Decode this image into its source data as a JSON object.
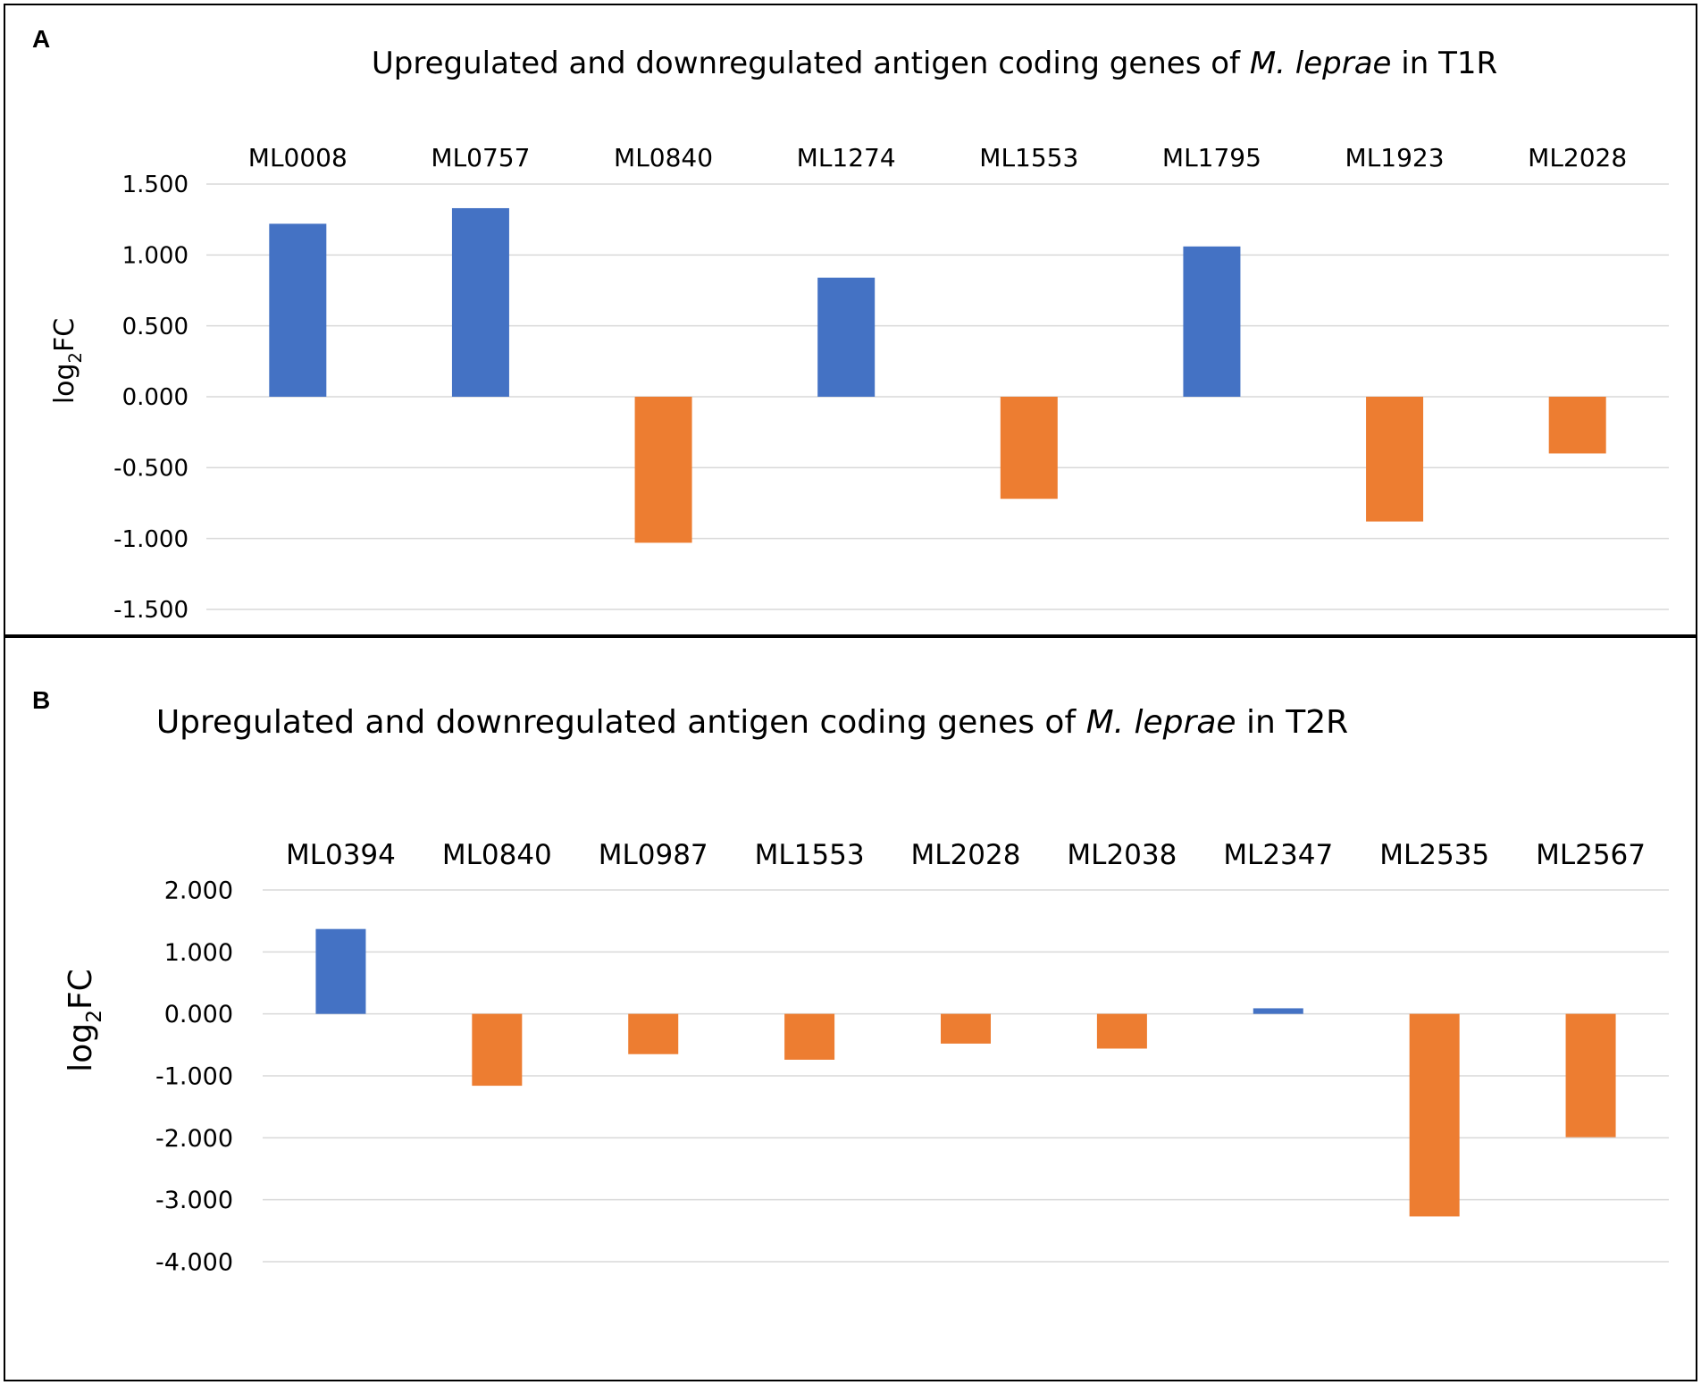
{
  "chart_data": [
    {
      "panel": "A",
      "type": "bar",
      "title_parts": [
        "Upregulated and downregulated antigen coding genes of ",
        "M. leprae",
        " in T1R"
      ],
      "ylabel": {
        "main": "log",
        "sub": "2",
        "rest": "FC"
      },
      "xlabel": "",
      "categories": [
        "ML0008",
        "ML0757",
        "ML0840",
        "ML1274",
        "ML1553",
        "ML1795",
        "ML1923",
        "ML2028"
      ],
      "values": [
        1.22,
        1.33,
        -1.03,
        0.84,
        -0.72,
        1.06,
        -0.88,
        -0.4
      ],
      "ylim": [
        -1.5,
        1.5
      ],
      "yticks": [
        1.5,
        1.0,
        0.5,
        0.0,
        -0.5,
        -1.0,
        -1.5
      ],
      "ytick_labels": [
        "1.500",
        "1.000",
        "0.500",
        "0.000",
        "-0.500",
        "-1.000",
        "-1.500"
      ],
      "grid": true,
      "legend": "none",
      "colors": {
        "up": "#4472C4",
        "down": "#ED7D31",
        "grid": "#d9d9d9"
      }
    },
    {
      "panel": "B",
      "type": "bar",
      "title_parts": [
        "Upregulated and downregulated antigen coding genes of ",
        "M. leprae",
        " in T2R"
      ],
      "ylabel": {
        "main": "log",
        "sub": "2",
        "rest": "FC"
      },
      "xlabel": "",
      "categories": [
        "ML0394",
        "ML0840",
        "ML0987",
        "ML1553",
        "ML2028",
        "ML2038",
        "ML2347",
        "ML2535",
        "ML2567"
      ],
      "values": [
        1.37,
        -1.16,
        -0.65,
        -0.74,
        -0.48,
        -0.56,
        0.09,
        -3.27,
        -1.99
      ],
      "ylim": [
        -4.0,
        2.0
      ],
      "yticks": [
        2.0,
        1.0,
        0.0,
        -1.0,
        -2.0,
        -3.0,
        -4.0
      ],
      "ytick_labels": [
        "2.000",
        "1.000",
        "0.000",
        "-1.000",
        "-2.000",
        "-3.000",
        "-4.000"
      ],
      "grid": true,
      "legend": "none",
      "colors": {
        "up": "#4472C4",
        "down": "#ED7D31",
        "grid": "#d9d9d9"
      }
    }
  ]
}
